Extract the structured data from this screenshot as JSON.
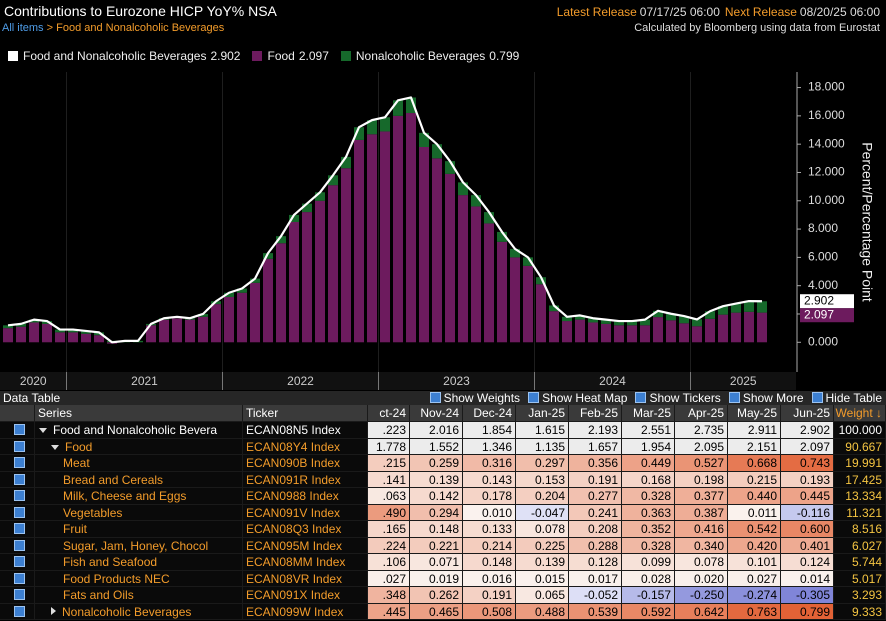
{
  "header": {
    "title": "Contributions to Eurozone HICP YoY% NSA",
    "breadcrumb": [
      "All items",
      ">",
      "Food and Nonalcoholic Beverages"
    ],
    "latest_release_label": "Latest Release",
    "latest_release": "07/17/25 06:00",
    "next_release_label": "Next Release",
    "next_release": "08/20/25 06:00",
    "source": "Calculated by Bloomberg using data from Eurostat"
  },
  "chart_data": {
    "type": "bar",
    "stacked": true,
    "axis_label": "Percent/Percentage Point",
    "x_labels": [
      "2020",
      "2021",
      "2022",
      "2023",
      "2024",
      "2025"
    ],
    "ylim": [
      -2.1,
      19.1
    ],
    "yticks": [
      {
        "value": 0,
        "label": "0.000"
      },
      {
        "value": 2,
        "label": "2.000"
      },
      {
        "value": 4,
        "label": "4.000"
      },
      {
        "value": 6,
        "label": "6.000"
      },
      {
        "value": 8,
        "label": "8.000"
      },
      {
        "value": 10,
        "label": "10.000"
      },
      {
        "value": 12,
        "label": "12.000"
      },
      {
        "value": 14,
        "label": "14.000"
      },
      {
        "value": 16,
        "label": "16.000"
      },
      {
        "value": 18,
        "label": "18.000"
      }
    ],
    "grid": false,
    "series": [
      {
        "name": "Food and Nonalcoholic Beverages",
        "type": "line",
        "color": "#ffffff",
        "values": [
          1.2,
          1.3,
          1.6,
          1.5,
          0.9,
          0.9,
          0.8,
          0.7,
          0.0,
          0.1,
          0.1,
          1.3,
          1.7,
          1.8,
          1.7,
          2.0,
          2.9,
          3.5,
          3.8,
          4.5,
          6.3,
          7.5,
          9.0,
          9.8,
          10.6,
          11.8,
          13.1,
          15.2,
          15.7,
          15.9,
          17.1,
          17.3,
          14.8,
          14.0,
          12.8,
          11.3,
          10.4,
          9.2,
          7.8,
          6.6,
          6.0,
          4.6,
          2.6,
          1.8,
          1.9,
          1.7,
          1.6,
          1.5,
          1.5,
          1.6,
          2.223,
          2.016,
          1.854,
          1.615,
          2.193,
          2.551,
          2.735,
          2.911,
          2.902
        ]
      },
      {
        "name": "Food",
        "type": "bar",
        "color": "#6d1b5e",
        "values": [
          1.0,
          1.1,
          1.4,
          1.3,
          0.7,
          0.7,
          0.6,
          0.5,
          -0.1,
          0.0,
          0.0,
          1.2,
          1.6,
          1.7,
          1.6,
          1.8,
          2.7,
          3.2,
          3.5,
          4.2,
          5.9,
          7.0,
          8.5,
          9.2,
          10.0,
          11.1,
          12.3,
          14.3,
          14.7,
          14.9,
          16.0,
          16.2,
          13.8,
          13.0,
          11.9,
          10.4,
          9.6,
          8.4,
          7.1,
          6.0,
          5.4,
          4.1,
          2.2,
          1.5,
          1.6,
          1.4,
          1.3,
          1.2,
          1.2,
          1.2,
          1.778,
          1.552,
          1.346,
          1.135,
          1.657,
          1.954,
          2.095,
          2.151,
          2.097
        ]
      },
      {
        "name": "Nonalcoholic Beverages",
        "type": "bar",
        "color": "#16692b",
        "values": [
          0.2,
          0.2,
          0.2,
          0.2,
          0.2,
          0.2,
          0.2,
          0.2,
          0.1,
          0.1,
          0.1,
          0.1,
          0.1,
          0.1,
          0.1,
          0.2,
          0.2,
          0.3,
          0.3,
          0.3,
          0.4,
          0.5,
          0.5,
          0.6,
          0.6,
          0.7,
          0.8,
          0.9,
          1.0,
          1.0,
          1.1,
          1.1,
          1.0,
          1.0,
          0.9,
          0.9,
          0.8,
          0.8,
          0.7,
          0.6,
          0.6,
          0.5,
          0.4,
          0.3,
          0.3,
          0.3,
          0.3,
          0.3,
          0.3,
          0.4,
          0.445,
          0.465,
          0.508,
          0.488,
          0.539,
          0.592,
          0.642,
          0.763,
          0.799
        ]
      }
    ]
  },
  "toolbar": {
    "title": "Data Table",
    "options": [
      "Show Weights",
      "Show Heat Map",
      "Show Tickers",
      "Show More",
      "Hide Table"
    ]
  },
  "table": {
    "columns": [
      "Series",
      "Ticker",
      "ct-24",
      "Nov-24",
      "Dec-24",
      "Jan-25",
      "Feb-25",
      "Mar-25",
      "Apr-25",
      "May-25",
      "Jun-25",
      "Weight ↓"
    ],
    "rows": [
      {
        "level": 0,
        "cells": [
          "Food and Nonalcoholic Bevera",
          "ECAN08N5 Index",
          ".223",
          "2.016",
          "1.854",
          "1.615",
          "2.193",
          "2.551",
          "2.735",
          "2.911",
          "2.902",
          "100.000"
        ]
      },
      {
        "level": 1,
        "cells": [
          "Food",
          "ECAN08Y4 Index",
          "1.778",
          "1.552",
          "1.346",
          "1.135",
          "1.657",
          "1.954",
          "2.095",
          "2.151",
          "2.097",
          "90.667"
        ]
      },
      {
        "level": 2,
        "cells": [
          "Meat",
          "ECAN090B Index",
          ".215",
          "0.259",
          "0.316",
          "0.297",
          "0.356",
          "0.449",
          "0.527",
          "0.668",
          "0.743",
          "19.991"
        ]
      },
      {
        "level": 2,
        "cells": [
          "Bread and Cereals",
          "ECAN091R Index",
          ".141",
          "0.139",
          "0.143",
          "0.153",
          "0.191",
          "0.168",
          "0.198",
          "0.215",
          "0.193",
          "17.425"
        ]
      },
      {
        "level": 2,
        "cells": [
          "Milk, Cheese and Eggs",
          "ECAN0988 Index",
          ".063",
          "0.142",
          "0.178",
          "0.204",
          "0.277",
          "0.328",
          "0.377",
          "0.440",
          "0.445",
          "13.334"
        ]
      },
      {
        "level": 2,
        "cells": [
          "Vegetables",
          "ECAN091V Index",
          ".490",
          "0.294",
          "0.010",
          "-0.047",
          "0.241",
          "0.363",
          "0.387",
          "0.011",
          "-0.116",
          "11.321"
        ]
      },
      {
        "level": 2,
        "cells": [
          "Fruit",
          "ECAN08Q3 Index",
          ".165",
          "0.148",
          "0.133",
          "0.078",
          "0.208",
          "0.352",
          "0.416",
          "0.542",
          "0.600",
          "8.516"
        ]
      },
      {
        "level": 2,
        "cells": [
          "Sugar, Jam, Honey, Chocol",
          "ECAN095M Index",
          ".224",
          "0.221",
          "0.214",
          "0.225",
          "0.288",
          "0.328",
          "0.340",
          "0.420",
          "0.401",
          "6.027"
        ]
      },
      {
        "level": 2,
        "cells": [
          "Fish and Seafood",
          "ECAN08MM Index",
          ".106",
          "0.071",
          "0.148",
          "0.139",
          "0.128",
          "0.099",
          "0.078",
          "0.101",
          "0.124",
          "5.744"
        ]
      },
      {
        "level": 2,
        "cells": [
          "Food Products NEC",
          "ECAN08VR Index",
          ".027",
          "0.019",
          "0.016",
          "0.015",
          "0.017",
          "0.028",
          "0.020",
          "0.027",
          "0.014",
          "5.017"
        ]
      },
      {
        "level": 2,
        "cells": [
          "Fats and Oils",
          "ECAN091X Index",
          ".348",
          "0.262",
          "0.191",
          "0.065",
          "-0.052",
          "-0.157",
          "-0.250",
          "-0.274",
          "-0.305",
          "3.293"
        ]
      },
      {
        "level": 1,
        "cells": [
          "Nonalcoholic Beverages",
          "ECAN099W Index",
          ".445",
          "0.465",
          "0.508",
          "0.488",
          "0.539",
          "0.592",
          "0.642",
          "0.763",
          "0.799",
          "9.333"
        ]
      }
    ]
  }
}
